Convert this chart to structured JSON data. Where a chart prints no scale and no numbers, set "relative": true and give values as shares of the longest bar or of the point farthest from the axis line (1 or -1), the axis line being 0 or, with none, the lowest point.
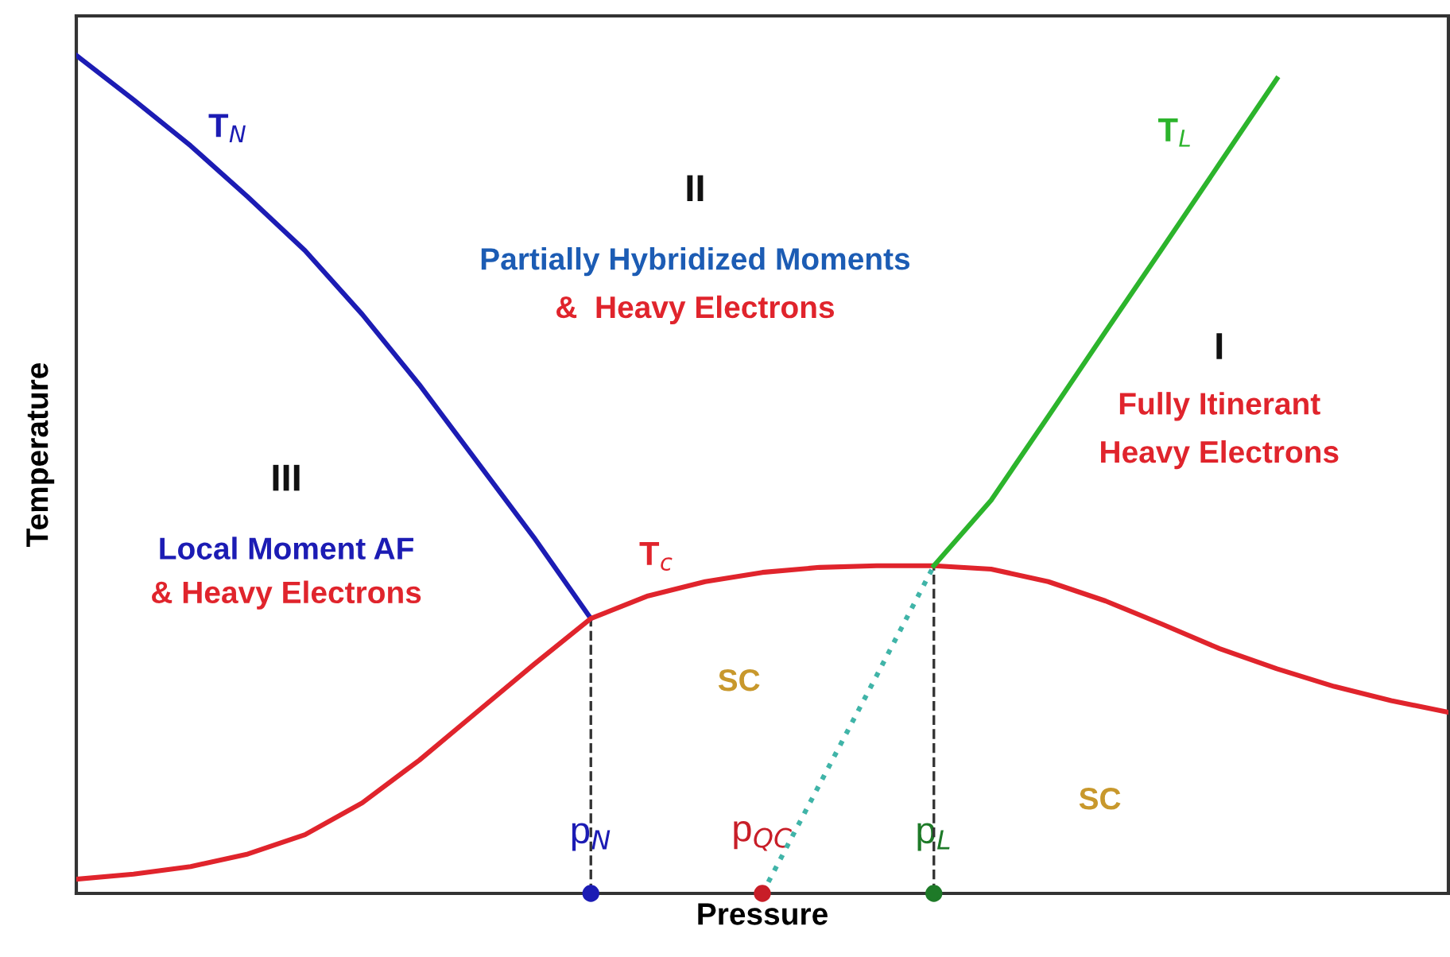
{
  "chart_data": {
    "type": "line",
    "relative": true,
    "xlabel": "Pressure",
    "ylabel": "Temperature",
    "categories": [
      null,
      null,
      null,
      null,
      null,
      null,
      null,
      null,
      null,
      "p$_{N}$",
      null,
      null,
      "p$_{QC}$",
      null,
      null,
      "p$_{L}$",
      null,
      null,
      null,
      null,
      null,
      null,
      null,
      null,
      null
    ],
    "series": [
      {
        "name": "T$_{N}$",
        "color": "#1c1cb4",
        "values": [
          1,
          0.947,
          0.892,
          0.831,
          0.767,
          0.691,
          0.607,
          0.516,
          0.425,
          0.328,
          null,
          null,
          null,
          null,
          null,
          null,
          null,
          null,
          null,
          null,
          null,
          null,
          null,
          null,
          null
        ]
      },
      {
        "name": "T$_{c}$",
        "color": "#e0242c",
        "values": [
          0.017,
          0.023,
          0.032,
          0.047,
          0.07,
          0.108,
          0.159,
          0.216,
          0.273,
          0.328,
          0.355,
          0.372,
          0.383,
          0.389,
          0.391,
          0.391,
          0.387,
          0.372,
          0.349,
          0.321,
          0.292,
          0.268,
          0.247,
          0.23,
          0.216
        ]
      },
      {
        "name": "T$_{L}$",
        "color": "#2cb42c",
        "values": [
          null,
          null,
          null,
          null,
          null,
          null,
          null,
          null,
          null,
          null,
          null,
          null,
          null,
          null,
          null,
          0.391,
          0.469,
          0.569,
          0.67,
          0.77,
          0.871,
          0.972,
          null,
          null,
          null
        ]
      },
      {
        "color": "#40b4a8",
        "line_style": "dotted",
        "values": [
          null,
          null,
          null,
          null,
          null,
          null,
          null,
          null,
          null,
          null,
          null,
          null,
          0,
          0.13,
          0.26,
          0.391,
          null,
          null,
          null,
          null,
          null,
          null,
          null,
          null,
          null
        ]
      },
      {
        "type": "scatter",
        "marker": "circle",
        "x": [
          "p$_{N}$",
          "p$_{QC}$",
          "p$_{L}$"
        ],
        "values": [
          0,
          0,
          0
        ],
        "colors": [
          "#1c1cb4",
          "#c81e28",
          "#1e7a28"
        ]
      }
    ],
    "ref_lines": [
      {
        "axis": "x",
        "value": "p$_{N}$",
        "line_style": "dashed",
        "color": "#333333"
      },
      {
        "axis": "x",
        "value": "p$_{L}$",
        "line_style": "dashed",
        "color": "#333333"
      }
    ],
    "annotations": [
      "III",
      "Local Moment AF",
      "& Heavy Electrons",
      "II",
      "Partially Hybridized Moments",
      "&  Heavy Electrons",
      "I",
      "Fully Itinerant",
      "Heavy Electrons",
      "SC",
      "SC"
    ],
    "tick_labels": "x",
    "grid": false,
    "legend": false,
    "line_style": "solid",
    "marker": "none"
  }
}
